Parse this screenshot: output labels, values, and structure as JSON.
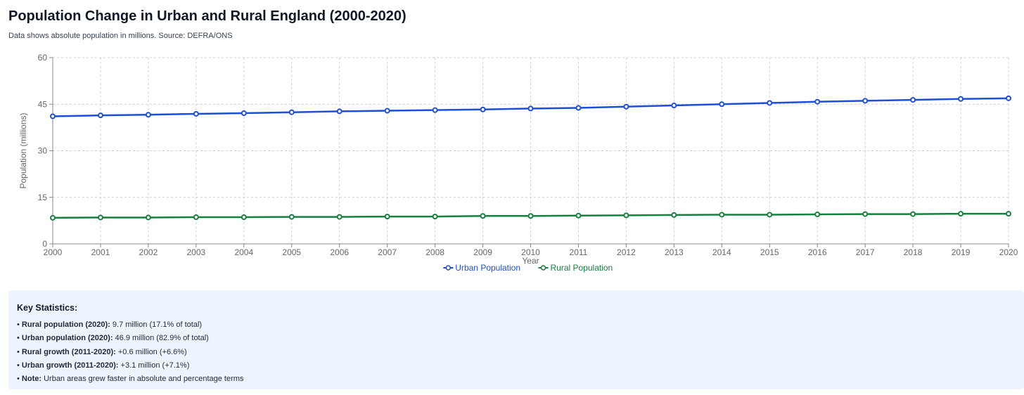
{
  "title": "Population Change in Urban and Rural England (2000-2020)",
  "subtitle": "Data shows absolute population in millions. Source: DEFRA/ONS",
  "chart_data": {
    "type": "line",
    "x": [
      2000,
      2001,
      2002,
      2003,
      2004,
      2005,
      2006,
      2007,
      2008,
      2009,
      2010,
      2011,
      2012,
      2013,
      2014,
      2015,
      2016,
      2017,
      2018,
      2019,
      2020
    ],
    "series": [
      {
        "name": "Urban Population",
        "color": "#1d4ed8",
        "values": [
          41.1,
          41.4,
          41.6,
          41.9,
          42.1,
          42.4,
          42.7,
          42.9,
          43.1,
          43.3,
          43.6,
          43.8,
          44.2,
          44.6,
          45.0,
          45.4,
          45.8,
          46.1,
          46.4,
          46.7,
          46.9
        ]
      },
      {
        "name": "Rural Population",
        "color": "#15803d",
        "values": [
          8.4,
          8.5,
          8.5,
          8.6,
          8.6,
          8.7,
          8.7,
          8.8,
          8.8,
          9.0,
          9.0,
          9.1,
          9.2,
          9.3,
          9.4,
          9.4,
          9.5,
          9.6,
          9.6,
          9.7,
          9.7
        ]
      }
    ],
    "xlabel": "Year",
    "ylabel": "Population (millions)",
    "ylim": [
      0,
      60
    ],
    "yticks": [
      0,
      15,
      30,
      45,
      60
    ],
    "grid": true,
    "legend_position": "bottom-center"
  },
  "key_statistics": {
    "heading": "Key Statistics:",
    "items": [
      {
        "label": "Rural population (2020):",
        "text": "9.7 million (17.1% of total)"
      },
      {
        "label": "Urban population (2020):",
        "text": "46.9 million (82.9% of total)"
      },
      {
        "label": "Rural growth (2011-2020):",
        "text": "+0.6 million (+6.6%)"
      },
      {
        "label": "Urban growth (2011-2020):",
        "text": "+3.1 million (+7.1%)"
      },
      {
        "label": "Note:",
        "text": "Urban areas grew faster in absolute and percentage terms"
      }
    ]
  }
}
